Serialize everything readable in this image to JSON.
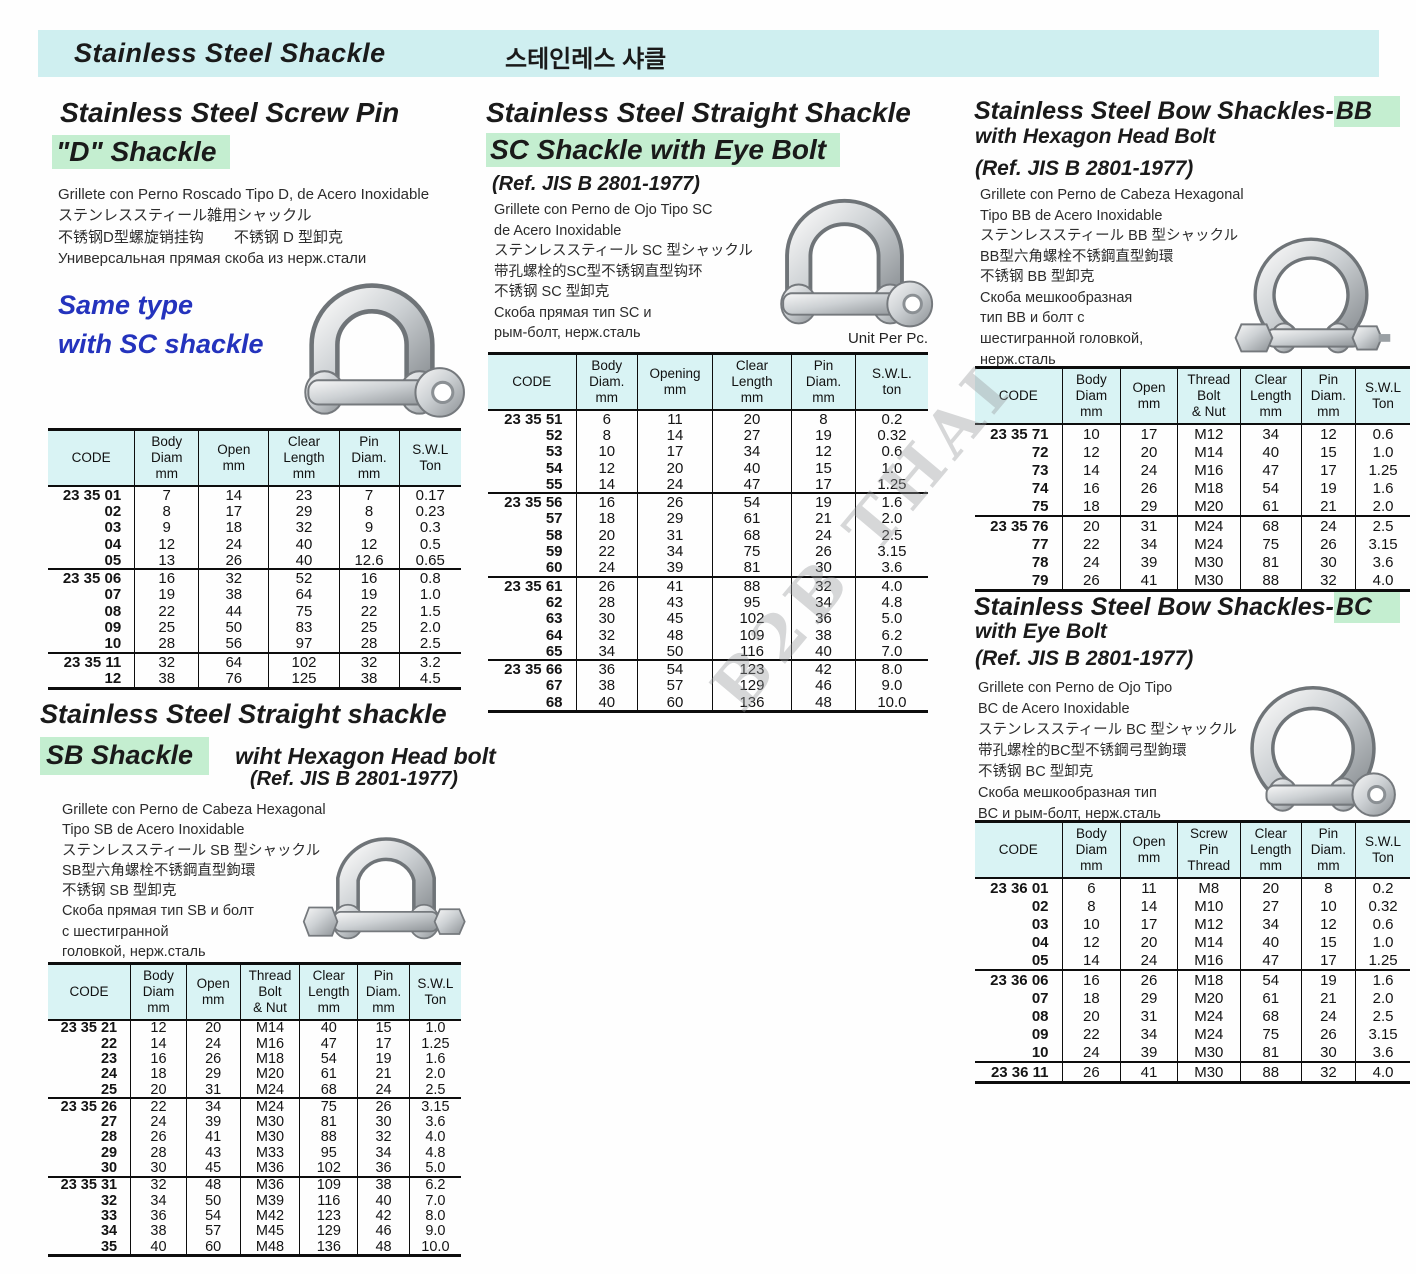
{
  "page": {
    "title": "Stainless Steel Shackle",
    "title_kr": "스테인레스  샤클",
    "watermark": "B2B THAI",
    "accent_green": "#c4eed0",
    "accent_cyan": "#cfeff0",
    "blue_text": "#2433bd"
  },
  "sections": {
    "d": {
      "title1": "Stainless Steel Screw Pin",
      "title2": "\"D\" Shackle",
      "langs": [
        "Grillete con Perno Roscado Tipo D, de Acero Inoxidable",
        "ステンレススティール雑用シャックル",
        "不锈钢D型螺旋销挂钩　　不锈钢 D 型卸克",
        "Универсальная прямая скоба из нерж.стали"
      ],
      "note1": "Same type",
      "note2": "with SC shackle",
      "table": {
        "headers": [
          "CODE",
          "Body\nDiam\nmm",
          "Open\nmm",
          "Clear\nLength\nmm",
          "Pin\nDiam.\nmm",
          "S.W.L\nTon"
        ],
        "widths": [
          21,
          15.5,
          17,
          17,
          14.5,
          15
        ],
        "groups": [
          [
            [
              "23 35 01",
              "7",
              "14",
              "23",
              "7",
              "0.17"
            ],
            [
              "02",
              "8",
              "17",
              "29",
              "8",
              "0.23"
            ],
            [
              "03",
              "9",
              "18",
              "32",
              "9",
              "0.3"
            ],
            [
              "04",
              "12",
              "24",
              "40",
              "12",
              "0.5"
            ],
            [
              "05",
              "13",
              "26",
              "40",
              "12.6",
              "0.65"
            ]
          ],
          [
            [
              "23 35 06",
              "16",
              "32",
              "52",
              "16",
              "0.8"
            ],
            [
              "07",
              "19",
              "38",
              "64",
              "19",
              "1.0"
            ],
            [
              "08",
              "22",
              "44",
              "75",
              "22",
              "1.5"
            ],
            [
              "09",
              "25",
              "50",
              "83",
              "25",
              "2.0"
            ],
            [
              "10",
              "28",
              "56",
              "97",
              "28",
              "2.5"
            ]
          ],
          [
            [
              "23 35 11",
              "32",
              "64",
              "102",
              "32",
              "3.2"
            ],
            [
              "12",
              "38",
              "76",
              "125",
              "38",
              "4.5"
            ]
          ]
        ]
      }
    },
    "sc": {
      "title1": "Stainless Steel Straight Shackle",
      "title2": "SC Shackle with Eye Bolt",
      "ref": "(Ref. JIS B 2801-1977)",
      "unit_label": "Unit Per Pc.",
      "langs": [
        "Grillete con Perno de Ojo Tipo SC",
        "de Acero Inoxidable",
        "ステンレススティール SC 型シャックル",
        "带孔螺栓的SC型不锈钢直型钩环",
        "不锈钢 SC 型卸克",
        "Скоба прямая тип SC и",
        "рым-болт, нерж.сталь"
      ],
      "table": {
        "headers": [
          "CODE",
          "Body\nDiam.\nmm",
          "Opening\nmm",
          "Clear\nLength\nmm",
          "Pin\nDiam.\nmm",
          "S.W.L.\nton"
        ],
        "widths": [
          20,
          14,
          17,
          18,
          14.5,
          16.5
        ],
        "groups": [
          [
            [
              "23 35 51",
              "6",
              "11",
              "20",
              "8",
              "0.2"
            ],
            [
              "52",
              "8",
              "14",
              "27",
              "19",
              "0.32"
            ],
            [
              "53",
              "10",
              "17",
              "34",
              "12",
              "0.6"
            ],
            [
              "54",
              "12",
              "20",
              "40",
              "15",
              "1.0"
            ],
            [
              "55",
              "14",
              "24",
              "47",
              "17",
              "1.25"
            ]
          ],
          [
            [
              "23 35 56",
              "16",
              "26",
              "54",
              "19",
              "1.6"
            ],
            [
              "57",
              "18",
              "29",
              "61",
              "21",
              "2.0"
            ],
            [
              "58",
              "20",
              "31",
              "68",
              "24",
              "2.5"
            ],
            [
              "59",
              "22",
              "34",
              "75",
              "26",
              "3.15"
            ],
            [
              "60",
              "24",
              "39",
              "81",
              "30",
              "3.6"
            ]
          ],
          [
            [
              "23 35 61",
              "26",
              "41",
              "88",
              "32",
              "4.0"
            ],
            [
              "62",
              "28",
              "43",
              "95",
              "34",
              "4.8"
            ],
            [
              "63",
              "30",
              "45",
              "102",
              "36",
              "5.0"
            ],
            [
              "64",
              "32",
              "48",
              "109",
              "38",
              "6.2"
            ],
            [
              "65",
              "34",
              "50",
              "116",
              "40",
              "7.0"
            ]
          ],
          [
            [
              "23 35 66",
              "36",
              "54",
              "123",
              "42",
              "8.0"
            ],
            [
              "67",
              "38",
              "57",
              "129",
              "46",
              "9.0"
            ],
            [
              "68",
              "40",
              "60",
              "136",
              "48",
              "10.0"
            ]
          ]
        ]
      }
    },
    "bb": {
      "title1_pre": "Stainless Steel Bow Shackles-",
      "title1_hl": "BB",
      "title2": "with Hexagon Head Bolt",
      "ref": "(Ref. JIS B 2801-1977)",
      "langs": [
        "Grillete con Perno de Cabeza Hexagonal",
        "Tipo BB de Acero Inoxidable",
        "ステンレススティール BB 型シャックル",
        "BB型六角螺栓不锈鋼直型鉤環",
        "不锈钢 BB 型卸克",
        "Скоба мешкообразная",
        "тип BB и болт с",
        "шестигранной головкой,",
        "нерж.сталь"
      ],
      "table": {
        "headers": [
          "CODE",
          "Body\nDiam\nmm",
          "Open\nmm",
          "Thread\nBolt\n& Nut",
          "Clear\nLength\nmm",
          "Pin\nDiam.\nmm",
          "S.W.L\nTon"
        ],
        "widths": [
          20,
          13.5,
          13,
          14.5,
          14,
          12.5,
          12.5
        ],
        "groups": [
          [
            [
              "23 35 71",
              "10",
              "17",
              "M12",
              "34",
              "12",
              "0.6"
            ],
            [
              "72",
              "12",
              "20",
              "M14",
              "40",
              "15",
              "1.0"
            ],
            [
              "73",
              "14",
              "24",
              "M16",
              "47",
              "17",
              "1.25"
            ],
            [
              "74",
              "16",
              "26",
              "M18",
              "54",
              "19",
              "1.6"
            ],
            [
              "75",
              "18",
              "29",
              "M20",
              "61",
              "21",
              "2.0"
            ]
          ],
          [
            [
              "23 35 76",
              "20",
              "31",
              "M24",
              "68",
              "24",
              "2.5"
            ],
            [
              "77",
              "22",
              "34",
              "M24",
              "75",
              "26",
              "3.15"
            ],
            [
              "78",
              "24",
              "39",
              "M30",
              "81",
              "30",
              "3.6"
            ],
            [
              "79",
              "26",
              "41",
              "M30",
              "88",
              "32",
              "4.0"
            ]
          ]
        ]
      }
    },
    "bc": {
      "title1_pre": "Stainless Steel Bow Shackles-",
      "title1_hl": "BC",
      "title2": "with Eye Bolt",
      "ref": "(Ref. JIS B 2801-1977)",
      "langs": [
        "Grillete con Perno de Ojo Tipo",
        "BC de Acero Inoxidable",
        "ステンレススティール BC 型シャックル",
        "带孔螺栓的BC型不锈鋼弓型鉤環",
        "不锈钢 BC 型卸克",
        "Скоба мешкообразная тип",
        "BC и рым-болт, нерж.сталь"
      ],
      "table": {
        "headers": [
          "CODE",
          "Body\nDiam\nmm",
          "Open\nmm",
          "Screw\nPin\nThread",
          "Clear\nLength\nmm",
          "Pin\nDiam.\nmm",
          "S.W.L\nTon"
        ],
        "widths": [
          20,
          13.5,
          13,
          14.5,
          14,
          12.5,
          12.5
        ],
        "groups": [
          [
            [
              "23 36 01",
              "6",
              "11",
              "M8",
              "20",
              "8",
              "0.2"
            ],
            [
              "02",
              "8",
              "14",
              "M10",
              "27",
              "10",
              "0.32"
            ],
            [
              "03",
              "10",
              "17",
              "M12",
              "34",
              "12",
              "0.6"
            ],
            [
              "04",
              "12",
              "20",
              "M14",
              "40",
              "15",
              "1.0"
            ],
            [
              "05",
              "14",
              "24",
              "M16",
              "47",
              "17",
              "1.25"
            ]
          ],
          [
            [
              "23 36 06",
              "16",
              "26",
              "M18",
              "54",
              "19",
              "1.6"
            ],
            [
              "07",
              "18",
              "29",
              "M20",
              "61",
              "21",
              "2.0"
            ],
            [
              "08",
              "20",
              "31",
              "M24",
              "68",
              "24",
              "2.5"
            ],
            [
              "09",
              "22",
              "34",
              "M24",
              "75",
              "26",
              "3.15"
            ],
            [
              "10",
              "24",
              "39",
              "M30",
              "81",
              "30",
              "3.6"
            ]
          ],
          [
            [
              "23 36 11",
              "26",
              "41",
              "M30",
              "88",
              "32",
              "4.0"
            ]
          ]
        ]
      }
    },
    "sb": {
      "title1": "Stainless Steel  Straight shackle",
      "title2_hl": "SB Shackle",
      "title2_rest": "wiht Hexagon Head bolt",
      "ref": "(Ref. JIS B 2801-1977)",
      "langs": [
        "Grillete con Perno de Cabeza Hexagonal",
        "Tipo SB de Acero Inoxidable",
        "ステンレススティール SB 型シャックル",
        "SB型六角螺栓不锈鋼直型鉤環",
        "不锈钢 SB 型卸克",
        "Скоба прямая тип SB и болт",
        "с шестигранной",
        "головкой, нерж.сталь"
      ],
      "table": {
        "headers": [
          "CODE",
          "Body\nDiam\nmm",
          "Open\nmm",
          "Thread\nBolt\n& Nut",
          "Clear\nLength\nmm",
          "Pin\nDiam.\nmm",
          "S.W.L\nTon"
        ],
        "widths": [
          20,
          13.5,
          13,
          14.5,
          14,
          12.5,
          12.5
        ],
        "groups": [
          [
            [
              "23 35 21",
              "12",
              "20",
              "M14",
              "40",
              "15",
              "1.0"
            ],
            [
              "22",
              "14",
              "24",
              "M16",
              "47",
              "17",
              "1.25"
            ],
            [
              "23",
              "16",
              "26",
              "M18",
              "54",
              "19",
              "1.6"
            ],
            [
              "24",
              "18",
              "29",
              "M20",
              "61",
              "21",
              "2.0"
            ],
            [
              "25",
              "20",
              "31",
              "M24",
              "68",
              "24",
              "2.5"
            ]
          ],
          [
            [
              "23 35 26",
              "22",
              "34",
              "M24",
              "75",
              "26",
              "3.15"
            ],
            [
              "27",
              "24",
              "39",
              "M30",
              "81",
              "30",
              "3.6"
            ],
            [
              "28",
              "26",
              "41",
              "M30",
              "88",
              "32",
              "4.0"
            ],
            [
              "29",
              "28",
              "43",
              "M33",
              "95",
              "34",
              "4.8"
            ],
            [
              "30",
              "30",
              "45",
              "M36",
              "102",
              "36",
              "5.0"
            ]
          ],
          [
            [
              "23 35 31",
              "32",
              "48",
              "M36",
              "109",
              "38",
              "6.2"
            ],
            [
              "32",
              "34",
              "50",
              "M39",
              "116",
              "40",
              "7.0"
            ],
            [
              "33",
              "36",
              "54",
              "M42",
              "123",
              "42",
              "8.0"
            ],
            [
              "34",
              "38",
              "57",
              "M45",
              "129",
              "46",
              "9.0"
            ],
            [
              "35",
              "40",
              "60",
              "M48",
              "136",
              "48",
              "10.0"
            ]
          ]
        ]
      }
    }
  }
}
